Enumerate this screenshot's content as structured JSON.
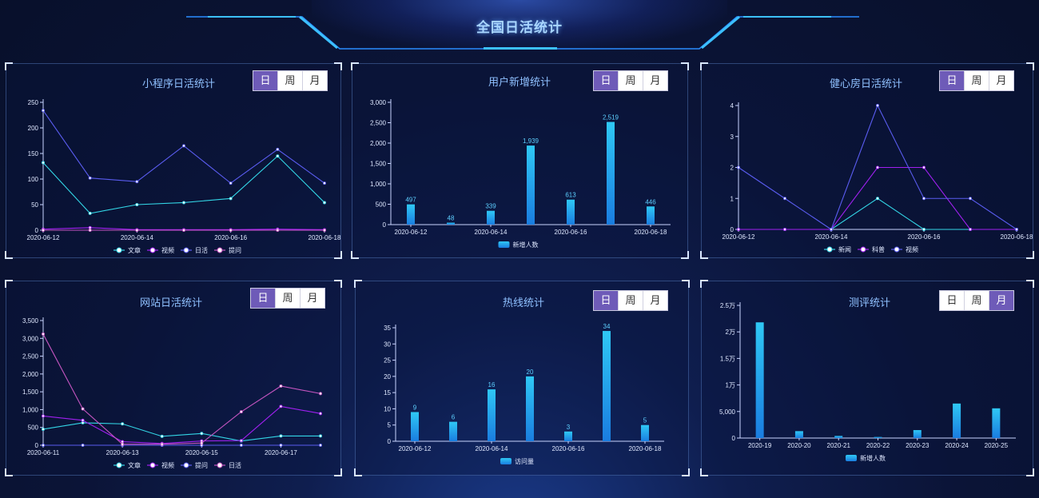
{
  "page": {
    "title": "全国日活统计"
  },
  "toggle_labels": [
    "日",
    "周",
    "月"
  ],
  "colors": {
    "cyan": "#33d6e6",
    "purple": "#a020f0",
    "blue": "#5a5cf0",
    "pink": "#c455c0",
    "bar_top": "#2fc8f5",
    "bar_bottom": "#1a7de0"
  },
  "panels": [
    {
      "id": "miniprogram",
      "title": "小程序日活统计",
      "active_toggle": 0,
      "chart_data": {
        "type": "line",
        "categories": [
          "2020-06-12",
          "2020-06-13",
          "2020-06-14",
          "2020-06-15",
          "2020-06-16",
          "2020-06-17",
          "2020-06-18"
        ],
        "xtick_labels": [
          "2020-06-12",
          "2020-06-14",
          "2020-06-16",
          "2020-06-18"
        ],
        "yticks": [
          "0",
          "50",
          "100",
          "150",
          "200",
          "250"
        ],
        "ylim": [
          0,
          250
        ],
        "legend_position": "bottom",
        "series": [
          {
            "name": "文章",
            "color": "#33d6e6",
            "values": [
              132,
              33,
              50,
              54,
              62,
              145,
              54
            ]
          },
          {
            "name": "视频",
            "color": "#a020f0",
            "values": [
              2,
              5,
              1,
              1,
              1,
              2,
              1
            ]
          },
          {
            "name": "日活",
            "color": "#5a5cf0",
            "values": [
              234,
              102,
              95,
              165,
              92,
              158,
              92
            ]
          },
          {
            "name": "提问",
            "color": "#c455c0",
            "values": [
              0,
              0,
              0,
              0,
              0,
              0,
              0
            ]
          }
        ]
      }
    },
    {
      "id": "new-users",
      "title": "用户新增统计",
      "active_toggle": 0,
      "chart_data": {
        "type": "bar",
        "categories": [
          "2020-06-12",
          "2020-06-13",
          "2020-06-14",
          "2020-06-15",
          "2020-06-16",
          "2020-06-17",
          "2020-06-18"
        ],
        "xtick_labels": [
          "2020-06-12",
          "2020-06-14",
          "2020-06-16",
          "2020-06-18"
        ],
        "yticks": [
          "0",
          "500",
          "1,000",
          "1,500",
          "2,000",
          "2,500",
          "3,000"
        ],
        "ylim": [
          0,
          3000
        ],
        "legend_position": "bottom",
        "series": [
          {
            "name": "新增人数",
            "values": [
              497,
              48,
              339,
              1939,
              613,
              2519,
              446
            ],
            "labels": [
              "497",
              "48",
              "339",
              "1,939",
              "613",
              "2,519",
              "446"
            ]
          }
        ]
      }
    },
    {
      "id": "gym",
      "title": "健心房日活统计",
      "active_toggle": 0,
      "chart_data": {
        "type": "line",
        "categories": [
          "2020-06-12",
          "2020-06-13",
          "2020-06-14",
          "2020-06-15",
          "2020-06-16",
          "2020-06-17",
          "2020-06-18"
        ],
        "xtick_labels": [
          "2020-06-12",
          "2020-06-14",
          "2020-06-16",
          "2020-06-18"
        ],
        "yticks": [
          "0",
          "1",
          "2",
          "3",
          "4"
        ],
        "ylim": [
          0,
          4
        ],
        "legend_position": "bottom",
        "series": [
          {
            "name": "新闻",
            "color": "#33d6e6",
            "values": [
              0,
              0,
              0,
              1,
              0,
              0,
              0
            ]
          },
          {
            "name": "科普",
            "color": "#a020f0",
            "values": [
              0,
              0,
              0,
              2,
              2,
              0,
              0
            ]
          },
          {
            "name": "视频",
            "color": "#5a5cf0",
            "values": [
              2,
              1,
              0,
              4,
              1,
              1,
              0
            ]
          }
        ]
      }
    },
    {
      "id": "website",
      "title": "网站日活统计",
      "active_toggle": 0,
      "chart_data": {
        "type": "line",
        "categories": [
          "2020-06-11",
          "2020-06-12",
          "2020-06-13",
          "2020-06-14",
          "2020-06-15",
          "2020-06-16",
          "2020-06-17",
          "2020-06-18"
        ],
        "xtick_labels": [
          "2020-06-11",
          "2020-06-13",
          "2020-06-15",
          "2020-06-17"
        ],
        "yticks": [
          "0",
          "500",
          "1,000",
          "1,500",
          "2,000",
          "2,500",
          "3,000",
          "3,500"
        ],
        "ylim": [
          0,
          3500
        ],
        "legend_position": "bottom",
        "series": [
          {
            "name": "文章",
            "color": "#33d6e6",
            "values": [
              450,
              630,
              600,
              250,
              330,
              120,
              260,
              260
            ]
          },
          {
            "name": "视频",
            "color": "#a020f0",
            "values": [
              820,
              700,
              100,
              50,
              120,
              130,
              1090,
              890
            ]
          },
          {
            "name": "提问",
            "color": "#5a5cf0",
            "values": [
              0,
              0,
              0,
              0,
              0,
              0,
              0,
              0
            ]
          },
          {
            "name": "日活",
            "color": "#c455c0",
            "values": [
              3120,
              1020,
              30,
              30,
              60,
              940,
              1660,
              1450
            ]
          }
        ]
      }
    },
    {
      "id": "hotline",
      "title": "热线统计",
      "active_toggle": 0,
      "chart_data": {
        "type": "bar",
        "categories": [
          "2020-06-12",
          "2020-06-13",
          "2020-06-14",
          "2020-06-15",
          "2020-06-16",
          "2020-06-17",
          "2020-06-18"
        ],
        "xtick_labels": [
          "2020-06-12",
          "2020-06-14",
          "2020-06-16",
          "2020-06-18"
        ],
        "yticks": [
          "0",
          "5",
          "10",
          "15",
          "20",
          "25",
          "30",
          "35"
        ],
        "ylim": [
          0,
          35
        ],
        "legend_position": "bottom",
        "series": [
          {
            "name": "访问量",
            "values": [
              9,
              6,
              16,
              20,
              3,
              34,
              5
            ],
            "labels": [
              "9",
              "6",
              "16",
              "20",
              "3",
              "34",
              "5"
            ]
          }
        ]
      }
    },
    {
      "id": "assessment",
      "title": "测评统计",
      "active_toggle": 2,
      "chart_data": {
        "type": "bar",
        "categories": [
          "2020-19",
          "2020-20",
          "2020-21",
          "2020-22",
          "2020-23",
          "2020-24",
          "2020-25"
        ],
        "xtick_labels": [
          "2020-19",
          "2020-20",
          "2020-21",
          "2020-22",
          "2020-23",
          "2020-24",
          "2020-25"
        ],
        "yticks": [
          "0",
          "5,000",
          "1万",
          "1.5万",
          "2万",
          "2.5万"
        ],
        "ylim": [
          0,
          25000
        ],
        "legend_position": "bottom",
        "series": [
          {
            "name": "新增人数",
            "values": [
              21800,
              1300,
              400,
              200,
              1500,
              6500,
              5600
            ],
            "labels": []
          }
        ]
      }
    }
  ]
}
